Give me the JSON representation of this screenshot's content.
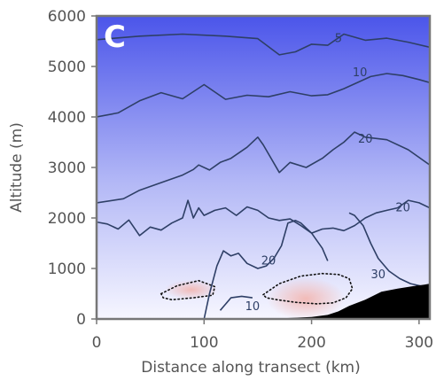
{
  "chart_data": {
    "type": "contour",
    "panel_label": "C",
    "xlabel": "Distance along transect (km)",
    "ylabel": "Altitude (m)",
    "xlim": [
      0,
      310
    ],
    "ylim": [
      0,
      6000
    ],
    "xticks": [
      0,
      100,
      200,
      300
    ],
    "yticks": [
      0,
      1000,
      2000,
      3000,
      4000,
      5000,
      6000
    ],
    "colors": {
      "field_top": "#4b55ea",
      "field_bottom": "#f6f6ff",
      "positive_anomaly": "#f2b8b4",
      "contour_line": "#2e3f66",
      "terrain": "#000000"
    },
    "contours": [
      {
        "level": "5",
        "label_at": [
          225,
          5550
        ],
        "x": [
          0,
          40,
          80,
          120,
          150,
          170,
          185,
          200,
          215,
          230,
          250,
          270,
          290,
          310
        ],
        "y": [
          5530,
          5600,
          5640,
          5600,
          5550,
          5230,
          5290,
          5440,
          5420,
          5640,
          5520,
          5560,
          5480,
          5380
        ]
      },
      {
        "level": "10",
        "label_at": [
          245,
          4880
        ],
        "x": [
          0,
          20,
          40,
          60,
          80,
          100,
          120,
          140,
          160,
          180,
          200,
          215,
          230,
          255,
          270,
          285,
          300,
          310
        ],
        "y": [
          4000,
          4080,
          4320,
          4480,
          4360,
          4640,
          4350,
          4430,
          4400,
          4500,
          4420,
          4440,
          4560,
          4800,
          4860,
          4820,
          4740,
          4680
        ]
      },
      {
        "level": "20",
        "label_at": [
          250,
          3560
        ],
        "x": [
          0,
          25,
          40,
          60,
          80,
          90,
          95,
          105,
          115,
          125,
          140,
          150,
          155,
          170,
          180,
          195,
          210,
          220,
          230,
          240,
          250,
          270,
          290,
          310
        ],
        "y": [
          2300,
          2380,
          2550,
          2700,
          2850,
          2960,
          3050,
          2950,
          3100,
          3180,
          3400,
          3600,
          3450,
          2900,
          3100,
          3000,
          3180,
          3350,
          3500,
          3700,
          3600,
          3550,
          3350,
          3050
        ]
      },
      {
        "level": "20",
        "label_at": [
          285,
          2200
        ],
        "x": [
          0,
          10,
          20,
          30,
          40,
          50,
          60,
          70,
          80,
          85,
          90,
          95,
          100,
          110,
          120,
          130,
          140,
          150,
          160,
          170,
          180,
          190,
          200,
          210,
          220,
          230,
          240,
          250,
          260,
          270,
          280,
          290,
          300,
          310
        ],
        "y": [
          1920,
          1880,
          1780,
          1960,
          1650,
          1820,
          1760,
          1900,
          2000,
          2350,
          2000,
          2200,
          2050,
          2150,
          2200,
          2050,
          2220,
          2150,
          2000,
          1950,
          1980,
          1850,
          1700,
          1780,
          1800,
          1750,
          1850,
          2000,
          2100,
          2150,
          2200,
          2350,
          2300,
          2200
        ]
      },
      {
        "level": "20",
        "label_at": [
          160,
          1150
        ],
        "x": [
          100,
          105,
          112,
          118,
          125,
          132,
          140,
          150,
          158,
          165,
          172,
          178,
          185,
          190,
          195,
          200,
          210,
          215
        ],
        "y": [
          0,
          500,
          1050,
          1350,
          1250,
          1300,
          1100,
          1000,
          1050,
          1200,
          1450,
          1900,
          1950,
          1900,
          1800,
          1700,
          1400,
          1150
        ]
      },
      {
        "level": "30",
        "label_at": [
          262,
          880
        ],
        "x": [
          235,
          240,
          248,
          255,
          262,
          272,
          282,
          292,
          302,
          310
        ],
        "y": [
          2100,
          2050,
          1850,
          1500,
          1200,
          950,
          800,
          700,
          650,
          600
        ]
      },
      {
        "level": "10",
        "label_at": [
          145,
          250
        ],
        "x": [
          115,
          125,
          135,
          145
        ],
        "y": [
          170,
          420,
          450,
          420
        ]
      }
    ],
    "dashed_contours": [
      {
        "level": "0",
        "x": [
          60,
          75,
          95,
          110,
          108,
          90,
          70,
          62,
          60
        ],
        "y": [
          500,
          660,
          760,
          640,
          470,
          420,
          380,
          420,
          500
        ]
      },
      {
        "level": "0",
        "x": [
          155,
          170,
          190,
          210,
          225,
          235,
          238,
          232,
          220,
          205,
          185,
          168,
          158,
          155
        ],
        "y": [
          480,
          700,
          850,
          900,
          880,
          800,
          600,
          420,
          320,
          300,
          330,
          380,
          420,
          480
        ]
      }
    ],
    "terrain": {
      "x": [
        158,
        180,
        200,
        215,
        225,
        235,
        250,
        265,
        280,
        295,
        305,
        310
      ],
      "y": [
        0,
        20,
        40,
        80,
        150,
        260,
        380,
        540,
        600,
        650,
        680,
        700
      ]
    }
  }
}
